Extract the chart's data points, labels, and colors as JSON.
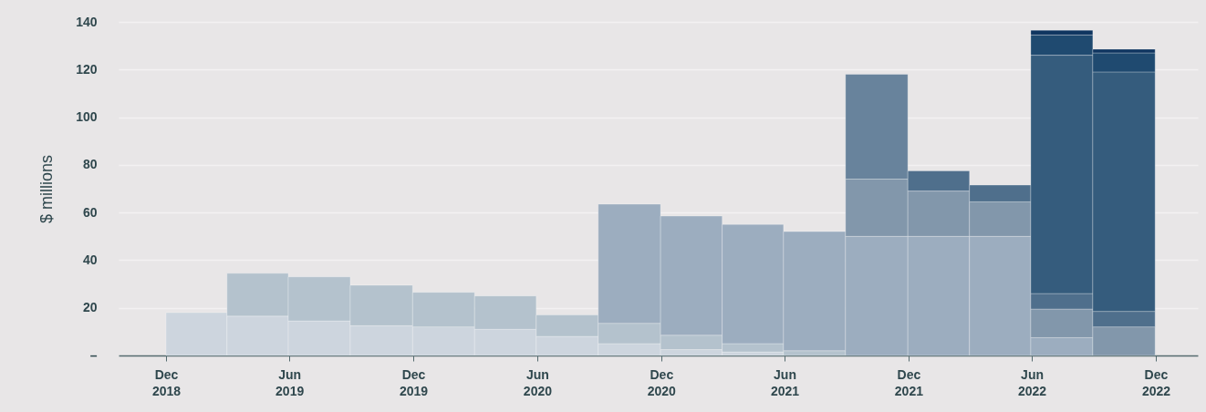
{
  "chart_data": {
    "type": "bar",
    "stacked": true,
    "ylabel": "$ millions",
    "x": [
      "2019-01-15",
      "2019-04-15",
      "2019-07-15",
      "2019-10-15",
      "2020-01-15",
      "2020-04-15",
      "2020-07-15",
      "2020-10-15",
      "2021-01-15",
      "2021-04-15",
      "2021-07-15",
      "2021-10-15",
      "2022-01-15",
      "2022-04-15",
      "2022-07-15",
      "2022-10-15"
    ],
    "series": [
      {
        "color": "#cdd5de",
        "values": [
          18,
          16.5,
          14.5,
          12.5,
          12,
          11,
          8,
          5,
          2.5,
          1.5,
          null,
          null,
          null,
          null,
          null,
          null
        ]
      },
      {
        "color": "#b4c2cd",
        "values": [
          null,
          18,
          18.5,
          17,
          14.5,
          14,
          9,
          8.5,
          6,
          3.5,
          2,
          null,
          null,
          null,
          null,
          null
        ]
      },
      {
        "color": "#9cadbf",
        "values": [
          null,
          null,
          null,
          null,
          null,
          null,
          null,
          50,
          50,
          50,
          50,
          50,
          50,
          50,
          7.5,
          null
        ]
      },
      {
        "color": "#8297ab",
        "values": [
          null,
          null,
          null,
          null,
          null,
          null,
          null,
          null,
          null,
          null,
          null,
          24,
          19,
          14.5,
          12,
          12
        ]
      },
      {
        "color": "#68839c",
        "values": [
          null,
          null,
          null,
          null,
          null,
          null,
          null,
          null,
          null,
          null,
          null,
          44,
          null,
          null,
          null,
          null
        ]
      },
      {
        "color": "#4f6f8c",
        "values": [
          null,
          null,
          null,
          null,
          null,
          null,
          null,
          null,
          null,
          null,
          null,
          null,
          8.5,
          7,
          6.5,
          6.5
        ]
      },
      {
        "color": "#355c7d",
        "values": [
          null,
          null,
          null,
          null,
          null,
          null,
          null,
          null,
          null,
          null,
          null,
          null,
          null,
          null,
          100,
          100.5
        ]
      },
      {
        "color": "#1f4a70",
        "values": [
          null,
          null,
          null,
          null,
          null,
          null,
          null,
          null,
          null,
          null,
          null,
          null,
          null,
          null,
          8.5,
          8
        ]
      },
      {
        "color": "#0f3560",
        "values": [
          null,
          null,
          null,
          null,
          null,
          null,
          null,
          null,
          null,
          null,
          null,
          null,
          null,
          null,
          2,
          1.5
        ]
      }
    ],
    "ylim": [
      0,
      140
    ],
    "yticks": [
      {
        "value": 0,
        "label": "–"
      },
      20,
      40,
      60,
      80,
      100,
      120,
      140
    ],
    "xlim": [
      "2018-09-22",
      "2023-02-01"
    ],
    "xticks": [
      {
        "value": "2018-12",
        "label": "Dec 2018"
      },
      {
        "value": "2019-06",
        "label": "Jun 2019"
      },
      {
        "value": "2019-12",
        "label": "Dec 2019"
      },
      {
        "value": "2020-06",
        "label": "Jun 2020"
      },
      {
        "value": "2020-12",
        "label": "Dec 2020"
      },
      {
        "value": "2021-06",
        "label": "Jun 2021"
      },
      {
        "value": "2021-12",
        "label": "Dec 2021"
      },
      {
        "value": "2022-06",
        "label": "Jun 2022"
      },
      {
        "value": "2022-12",
        "label": "Dec 2022"
      }
    ],
    "grid": "y"
  }
}
